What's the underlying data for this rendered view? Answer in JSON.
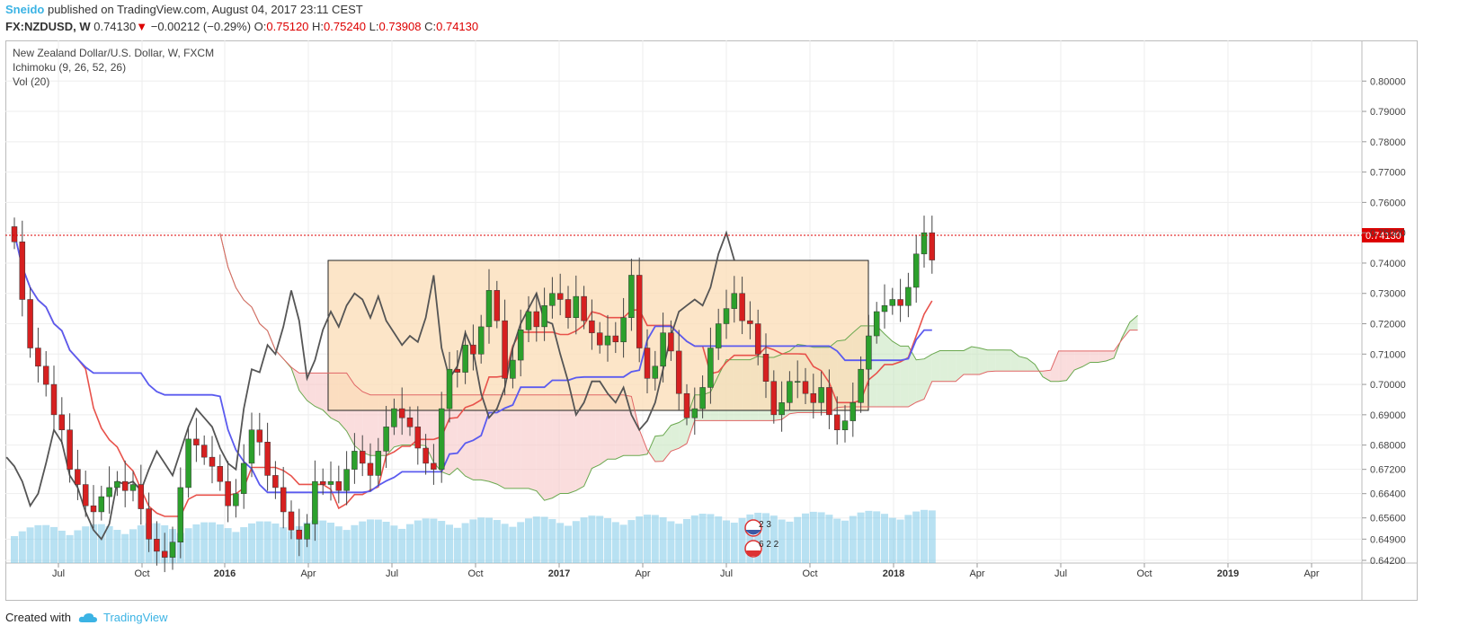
{
  "header": {
    "author": "Sneido",
    "published_text": "published on TradingView.com, August 04, 2017 23:11 CEST",
    "symbol": "FX:NZDUSD, W",
    "last": "0.74130",
    "change_arrow": "▼",
    "change": "−0.00212 (−0.29%)",
    "o_label": "O:",
    "o_value": "0.75120",
    "h_label": "H:",
    "h_value": "0.75240",
    "l_label": "L:",
    "l_value": "0.73908",
    "c_label": "C:",
    "c_value": "0.74130"
  },
  "legend": {
    "line1": "New Zealand Dollar/U.S. Dollar, W, FXCM",
    "line2": "Ichimoku (9, 26, 52, 26)",
    "line3": "Vol (20)"
  },
  "price_tag": "0.74130",
  "events": {
    "e1": "2 3",
    "e2": "6 2 2"
  },
  "footer": {
    "created_with": "Created with",
    "brand": "TradingView"
  },
  "colors": {
    "up": "#2ca02c",
    "down": "#d62020",
    "tenkan": "#e8524b",
    "kijun": "#5b5bef",
    "chikou": "#555555",
    "cloud_bear": "#f7c7c7",
    "cloud_bull": "#c8e6c0",
    "rect_fill": "#fbdcb5",
    "volume": "#7ec8e8",
    "accent": "#3bb3e4"
  },
  "chart_data": {
    "type": "candlestick",
    "instrument": "NZDUSD",
    "timeframe": "W",
    "ylim": [
      0.642,
      0.806
    ],
    "y_ticks": [
      "0.80000",
      "0.79000",
      "0.78000",
      "0.77000",
      "0.76000",
      "0.75000",
      "0.74000",
      "0.73000",
      "0.72000",
      "0.71000",
      "0.70000",
      "0.69000",
      "0.68000",
      "0.67200",
      "0.66400",
      "0.65600",
      "0.64900",
      "0.64200"
    ],
    "x_ticks": [
      {
        "label": "Jul",
        "bold": false
      },
      {
        "label": "Oct",
        "bold": false
      },
      {
        "label": "2016",
        "bold": true
      },
      {
        "label": "Apr",
        "bold": false
      },
      {
        "label": "Jul",
        "bold": false
      },
      {
        "label": "Oct",
        "bold": false
      },
      {
        "label": "2017",
        "bold": true
      },
      {
        "label": "Apr",
        "bold": false
      },
      {
        "label": "Jul",
        "bold": false
      },
      {
        "label": "Oct",
        "bold": false
      },
      {
        "label": "2018",
        "bold": true
      },
      {
        "label": "Apr",
        "bold": false
      },
      {
        "label": "Jul",
        "bold": false
      },
      {
        "label": "Oct",
        "bold": false
      },
      {
        "label": "2019",
        "bold": true
      },
      {
        "label": "Apr",
        "bold": false
      }
    ],
    "closes": [
      0.747,
      0.728,
      0.712,
      0.706,
      0.7,
      0.69,
      0.685,
      0.672,
      0.667,
      0.66,
      0.658,
      0.663,
      0.666,
      0.668,
      0.665,
      0.667,
      0.659,
      0.649,
      0.645,
      0.643,
      0.648,
      0.666,
      0.682,
      0.68,
      0.676,
      0.673,
      0.668,
      0.66,
      0.664,
      0.674,
      0.685,
      0.681,
      0.67,
      0.666,
      0.658,
      0.652,
      0.649,
      0.654,
      0.668,
      0.667,
      0.668,
      0.665,
      0.672,
      0.678,
      0.674,
      0.67,
      0.678,
      0.686,
      0.692,
      0.689,
      0.686,
      0.679,
      0.674,
      0.672,
      0.692,
      0.705,
      0.704,
      0.713,
      0.71,
      0.719,
      0.731,
      0.721,
      0.702,
      0.708,
      0.718,
      0.724,
      0.719,
      0.726,
      0.73,
      0.728,
      0.722,
      0.729,
      0.721,
      0.717,
      0.713,
      0.716,
      0.714,
      0.722,
      0.736,
      0.712,
      0.702,
      0.706,
      0.717,
      0.711,
      0.697,
      0.689,
      0.692,
      0.699,
      0.712,
      0.72,
      0.725,
      0.73,
      0.721,
      0.72,
      0.71,
      0.701,
      0.69,
      0.694,
      0.701,
      0.701,
      0.697,
      0.694,
      0.699,
      0.69,
      0.685,
      0.688,
      0.694,
      0.705,
      0.716,
      0.724,
      0.726,
      0.728,
      0.726,
      0.732,
      0.743,
      0.75,
      0.741
    ]
  }
}
